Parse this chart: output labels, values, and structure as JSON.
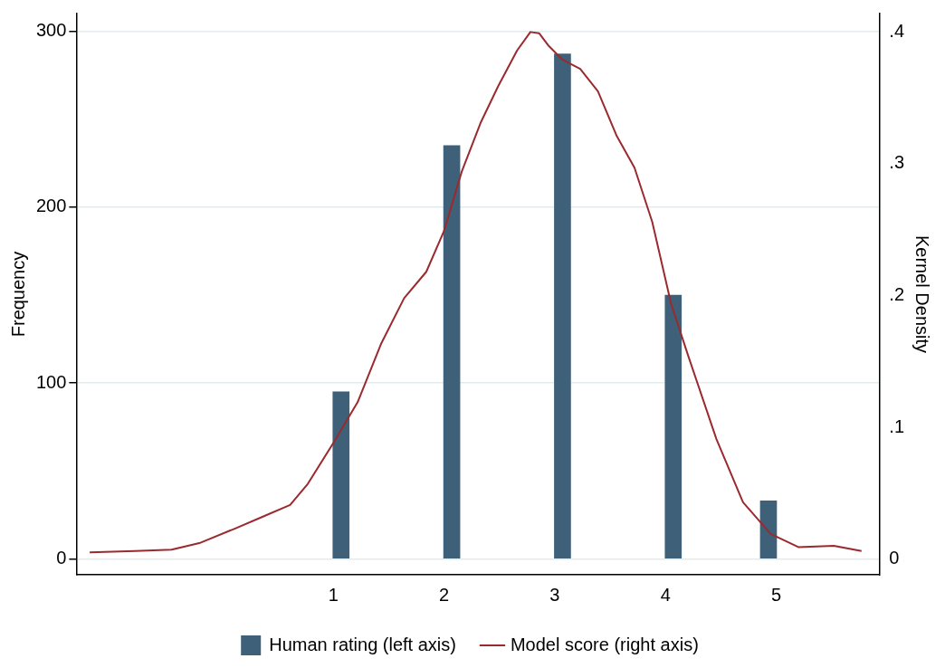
{
  "chart_data": {
    "type": "bar",
    "ylabel": "Frequency",
    "y2label": "Kernel Density",
    "xlim": [
      -1.32,
      5.93
    ],
    "xticks": [
      1,
      2,
      3,
      4,
      5
    ],
    "ylim": [
      -9,
      310
    ],
    "yticks": [
      0,
      100,
      200,
      300
    ],
    "y2lim": [
      -0.012,
      0.414
    ],
    "y2ticks": [
      {
        "value": 0,
        "label": "0"
      },
      {
        "value": 0.1,
        "label": ".1"
      },
      {
        "value": 0.2,
        "label": ".2"
      },
      {
        "value": 0.3,
        "label": ".3"
      },
      {
        "value": 0.4,
        "label": ".4"
      }
    ],
    "grid": "y",
    "legend": "bottom",
    "marker": "none",
    "line_style": "solid",
    "series": [
      {
        "name": "Human rating (left axis)",
        "color": "#3e6079",
        "x": [
          1.07,
          2.07,
          3.07,
          4.07,
          4.93
        ],
        "values": [
          95,
          235,
          287,
          150,
          33
        ]
      },
      {
        "name": "Model score (right axis)",
        "type": "line",
        "axis": "y2",
        "color": "#9b2a2f",
        "x": [
          -1.2,
          -0.79,
          -0.46,
          -0.21,
          0.11,
          0.36,
          0.61,
          0.77,
          1.0,
          1.22,
          1.43,
          1.64,
          1.84,
          2.0,
          2.16,
          2.33,
          2.49,
          2.66,
          2.78,
          2.86,
          2.94,
          3.07,
          3.23,
          3.39,
          3.56,
          3.72,
          3.88,
          4.05,
          4.21,
          4.46,
          4.7,
          4.95,
          5.2,
          5.52,
          5.77
        ],
        "values": [
          0.005,
          0.006,
          0.007,
          0.012,
          0.023,
          0.032,
          0.041,
          0.057,
          0.088,
          0.119,
          0.163,
          0.198,
          0.218,
          0.249,
          0.294,
          0.331,
          0.359,
          0.386,
          0.4,
          0.399,
          0.39,
          0.379,
          0.372,
          0.355,
          0.321,
          0.297,
          0.256,
          0.194,
          0.153,
          0.091,
          0.043,
          0.019,
          0.009,
          0.01,
          0.006
        ]
      }
    ]
  }
}
